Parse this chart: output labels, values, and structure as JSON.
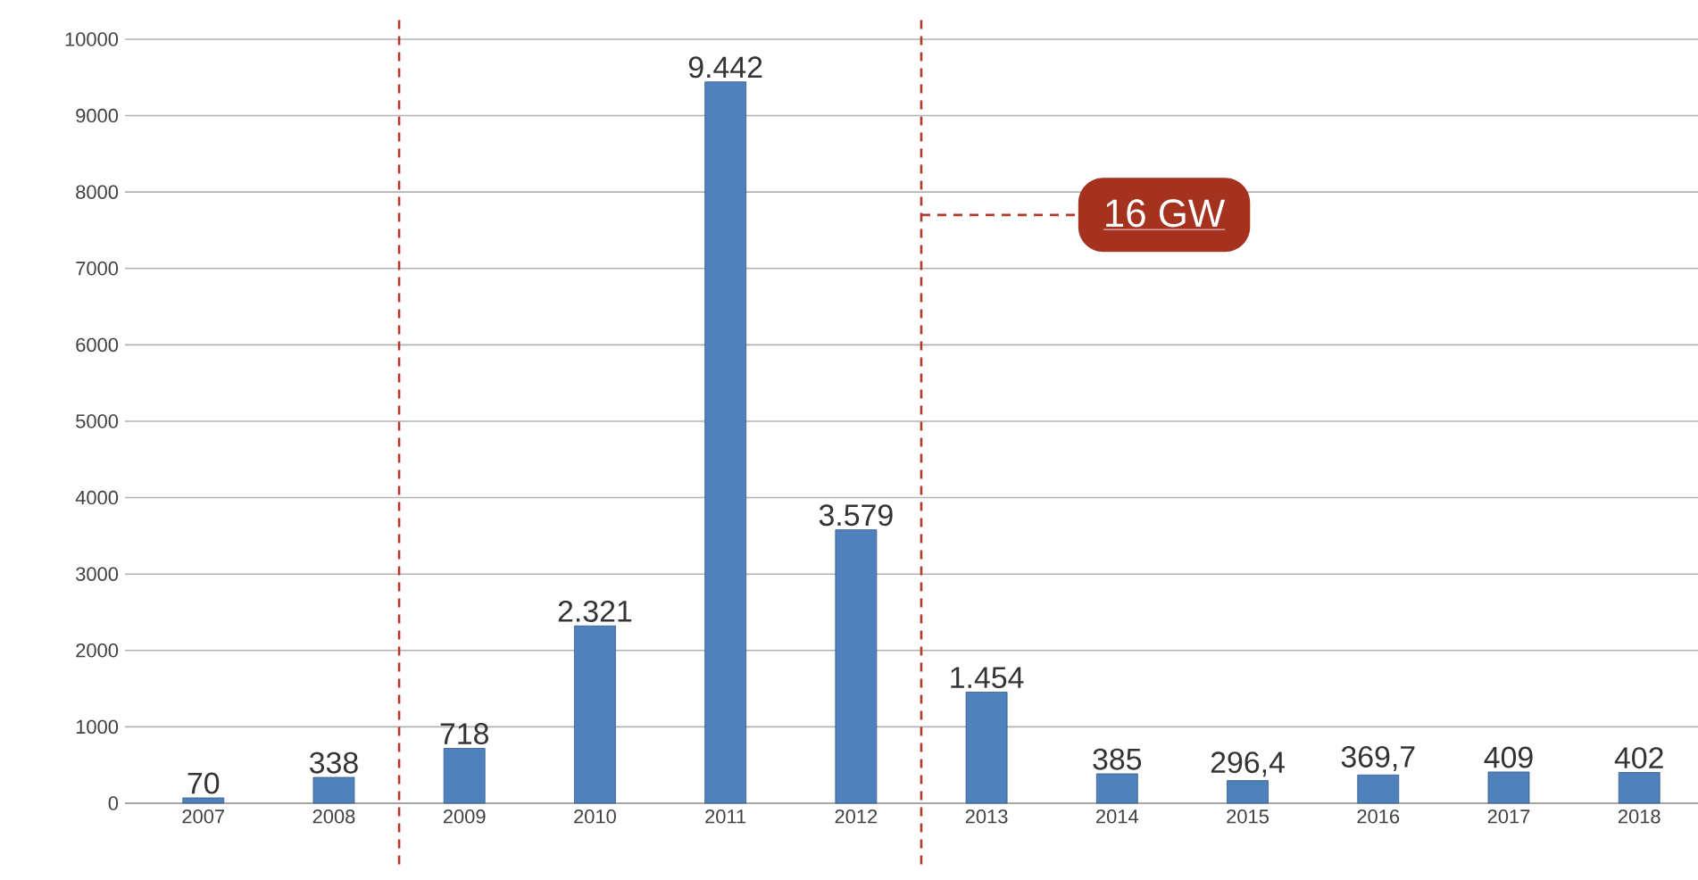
{
  "chart_data": {
    "type": "bar",
    "categories": [
      "2007",
      "2008",
      "2009",
      "2010",
      "2011",
      "2012",
      "2013",
      "2014",
      "2015",
      "2016",
      "2017",
      "2018"
    ],
    "values": [
      70,
      338,
      718,
      2321,
      9442,
      3579,
      1454,
      385,
      296.4,
      369.7,
      409,
      402
    ],
    "value_labels": [
      "70",
      "338",
      "718",
      "2.321",
      "9.442",
      "3.579",
      "1.454",
      "385",
      "296,4",
      "369,7",
      "409",
      "402"
    ],
    "color": "#4f81bd",
    "ylim": [
      0,
      10000
    ],
    "yticks": [
      0,
      1000,
      2000,
      3000,
      4000,
      5000,
      6000,
      7000,
      8000,
      9000,
      10000
    ],
    "grid": "y",
    "annotations": [
      "16 GW"
    ]
  }
}
